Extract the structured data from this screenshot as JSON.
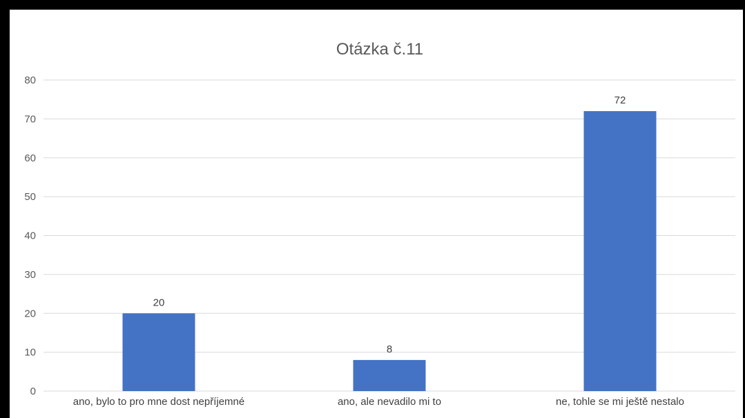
{
  "chart_data": {
    "type": "bar",
    "title": "Otázka č.11",
    "categories": [
      "ano, bylo to pro mne dost nepříjemné",
      "ano, ale nevadilo mi to",
      "ne, tohle se mi ještě nestalo"
    ],
    "values": [
      20,
      8,
      72
    ],
    "data_labels": [
      "20",
      "8",
      "72"
    ],
    "yticks": [
      "0",
      "10",
      "20",
      "30",
      "40",
      "50",
      "60",
      "70",
      "80"
    ],
    "ylim": [
      0,
      80
    ],
    "grid": true,
    "bar_color": "#4472C4",
    "grid_color": "#D9D9D9"
  }
}
